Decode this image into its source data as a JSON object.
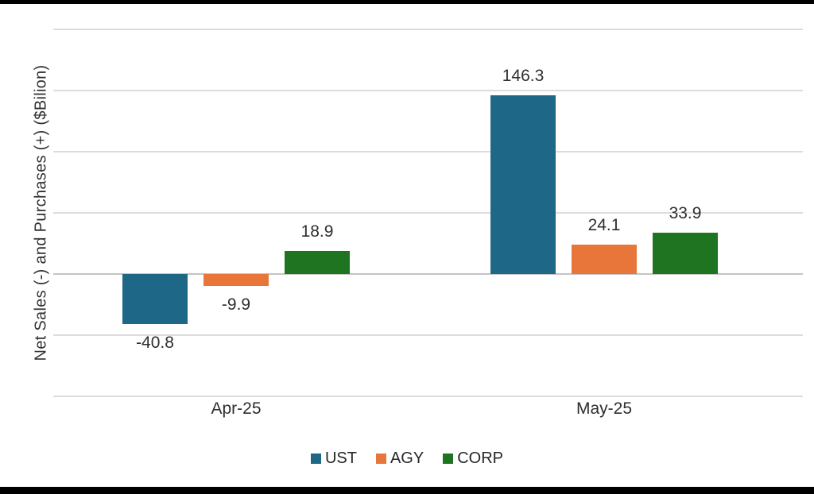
{
  "figure": {
    "background": "#ffffff",
    "border_color": "#000000"
  },
  "chart_data": {
    "type": "bar",
    "title": "",
    "ylabel": "Net Sales (-) and Purchases (+) ($Bilion)",
    "xlabel": "",
    "categories": [
      "Apr-25",
      "May-25"
    ],
    "series": [
      {
        "name": "UST",
        "color": "#1F6787",
        "values": [
          -40.8,
          146.3
        ]
      },
      {
        "name": "AGY",
        "color": "#E8763B",
        "values": [
          -9.9,
          24.1
        ]
      },
      {
        "name": "CORP",
        "color": "#1E7420",
        "values": [
          18.9,
          33.9
        ]
      }
    ],
    "value_labels": [
      [
        "-40.8",
        "146.3"
      ],
      [
        "-9.9",
        "24.1"
      ],
      [
        "18.9",
        "33.9"
      ]
    ],
    "ylim": [
      -100,
      200
    ],
    "grid_step": 50,
    "grid": true,
    "y_tick_labels_shown": false,
    "legend": [
      "UST",
      "AGY",
      "CORP"
    ],
    "legend_position": "bottom"
  }
}
